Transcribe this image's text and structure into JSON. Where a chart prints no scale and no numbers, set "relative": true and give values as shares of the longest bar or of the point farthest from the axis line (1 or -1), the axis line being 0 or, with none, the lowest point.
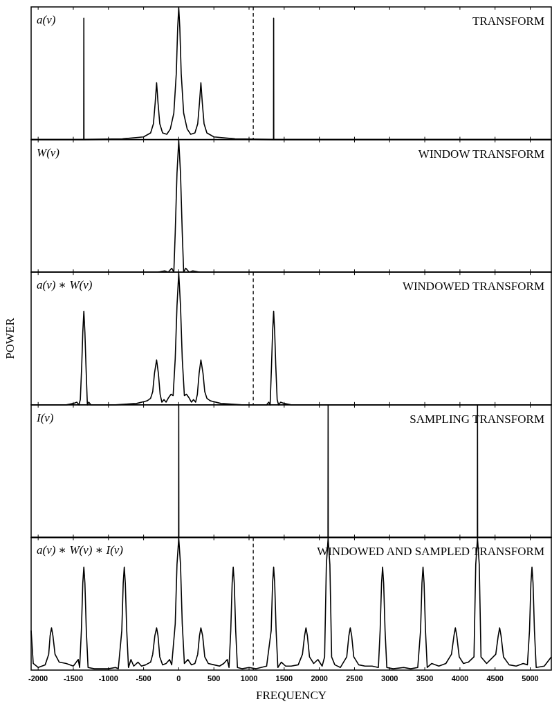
{
  "chart_data": [
    {
      "type": "line",
      "title": "TRANSFORM",
      "annotations": [
        "a(ν)"
      ],
      "relative": true,
      "xlim": [
        -2100,
        5300
      ],
      "xticks": [
        -2000,
        -1500,
        -1000,
        -500,
        0,
        500,
        1000,
        1500,
        2000,
        2500,
        3000,
        3500,
        4000,
        4500,
        5000
      ],
      "tick_labels": false,
      "ref_lines": [
        {
          "axis": "x",
          "value": 1060,
          "line_style": "dashed"
        }
      ],
      "series": [
        {
          "color": "#000000",
          "x": [
            -2100,
            -1352,
            -1350,
            -1348,
            -800,
            -500,
            -400,
            -360,
            -335,
            -315,
            -295,
            -270,
            -230,
            -170,
            -120,
            -70,
            -35,
            -15,
            0,
            15,
            35,
            70,
            120,
            170,
            230,
            270,
            295,
            315,
            335,
            360,
            400,
            500,
            800,
            1348,
            1350,
            1352,
            5300
          ],
          "values": [
            0,
            0,
            0.92,
            0,
            0.005,
            0.02,
            0.05,
            0.12,
            0.28,
            0.43,
            0.28,
            0.12,
            0.05,
            0.04,
            0.08,
            0.2,
            0.5,
            0.85,
            1,
            0.85,
            0.5,
            0.2,
            0.08,
            0.04,
            0.05,
            0.12,
            0.28,
            0.43,
            0.28,
            0.12,
            0.05,
            0.02,
            0.005,
            0,
            0.92,
            0,
            0
          ]
        }
      ]
    },
    {
      "type": "line",
      "title": "WINDOW TRANSFORM",
      "annotations": [
        "W(ν)"
      ],
      "relative": true,
      "xlim": [
        -2100,
        5300
      ],
      "xticks": [
        -2000,
        -1500,
        -1000,
        -500,
        0,
        500,
        1000,
        1500,
        2000,
        2500,
        3000,
        3500,
        4000,
        4500,
        5000
      ],
      "tick_labels": false,
      "series": [
        {
          "color": "#000000",
          "x": [
            -2100,
            -300,
            -200,
            -150,
            -100,
            -70,
            -50,
            -25,
            0,
            25,
            50,
            70,
            100,
            150,
            200,
            300,
            5300
          ],
          "values": [
            0,
            0,
            0.01,
            0,
            0.03,
            0,
            0.3,
            0.75,
            1,
            0.75,
            0.3,
            0,
            0.03,
            0,
            0.01,
            0,
            0
          ]
        }
      ]
    },
    {
      "type": "line",
      "title": "WINDOWED TRANSFORM",
      "annotations": [
        "a(ν) ∗ W(ν)"
      ],
      "ylabel": "POWER",
      "relative": true,
      "xlim": [
        -2100,
        5300
      ],
      "xticks": [
        -2000,
        -1500,
        -1000,
        -500,
        0,
        500,
        1000,
        1500,
        2000,
        2500,
        3000,
        3500,
        4000,
        4500,
        5000
      ],
      "tick_labels": false,
      "ref_lines": [
        {
          "axis": "x",
          "value": 1060,
          "line_style": "dashed"
        }
      ],
      "series": [
        {
          "color": "#000000",
          "x": [
            -2100,
            -1600,
            -1500,
            -1450,
            -1420,
            -1400,
            -1380,
            -1365,
            -1350,
            -1335,
            -1320,
            -1300,
            -1280,
            -1250,
            -900,
            -600,
            -450,
            -400,
            -370,
            -345,
            -315,
            -290,
            -265,
            -240,
            -210,
            -180,
            -150,
            -110,
            -80,
            -50,
            -25,
            0,
            25,
            50,
            80,
            110,
            150,
            180,
            210,
            240,
            265,
            290,
            315,
            345,
            370,
            400,
            450,
            600,
            900,
            1250,
            1280,
            1300,
            1320,
            1335,
            1350,
            1365,
            1380,
            1400,
            1420,
            1450,
            1500,
            1600,
            5300
          ],
          "values": [
            0,
            0,
            0.01,
            0.02,
            0,
            0.04,
            0.3,
            0.55,
            0.71,
            0.55,
            0.3,
            0,
            0.02,
            0,
            0,
            0.01,
            0.03,
            0.05,
            0.1,
            0.24,
            0.34,
            0.24,
            0.08,
            0.02,
            0.04,
            0.02,
            0.05,
            0.08,
            0.07,
            0.35,
            0.75,
            1,
            0.75,
            0.35,
            0.07,
            0.08,
            0.05,
            0.02,
            0.04,
            0.02,
            0.08,
            0.24,
            0.34,
            0.24,
            0.1,
            0.05,
            0.03,
            0.01,
            0,
            0,
            0.02,
            0,
            0.3,
            0.55,
            0.71,
            0.55,
            0.3,
            0.04,
            0,
            0.02,
            0.01,
            0,
            0
          ]
        }
      ]
    },
    {
      "type": "line",
      "title": "SAMPLING TRANSFORM",
      "annotations": [
        "I(ν)"
      ],
      "relative": true,
      "xlim": [
        -2100,
        5300
      ],
      "xticks": [
        -2000,
        -1500,
        -1000,
        -500,
        0,
        500,
        1000,
        1500,
        2000,
        2500,
        3000,
        3500,
        4000,
        4500,
        5000
      ],
      "tick_labels": false,
      "series": [
        {
          "color": "#000000",
          "x": [
            -2100,
            -2,
            0,
            2,
            2123,
            2125,
            2127,
            4248,
            4250,
            4252,
            5300
          ],
          "values": [
            0,
            0,
            1,
            0,
            0,
            1,
            0,
            0,
            1,
            0,
            0
          ]
        }
      ]
    },
    {
      "type": "line",
      "title": "WINDOWED AND SAMPLED TRANSFORM",
      "annotations": [
        "a(ν) ∗ W(ν) ∗ I(ν)"
      ],
      "xlabel": "FREQUENCY",
      "relative": true,
      "xlim": [
        -2100,
        5300
      ],
      "xticks": [
        -2000,
        -1500,
        -1000,
        -500,
        0,
        500,
        1000,
        1500,
        2000,
        2500,
        3000,
        3500,
        4000,
        4500,
        5000
      ],
      "tick_labels": "x",
      "ref_lines": [
        {
          "axis": "x",
          "value": 1060,
          "line_style": "dashed"
        }
      ],
      "series": [
        {
          "color": "#000000",
          "x": [
            -2100,
            -2070,
            -2000,
            -1900,
            -1850,
            -1830,
            -1810,
            -1790,
            -1760,
            -1700,
            -1600,
            -1500,
            -1430,
            -1410,
            -1385,
            -1365,
            -1350,
            -1335,
            -1315,
            -1290,
            -1200,
            -1000,
            -900,
            -860,
            -810,
            -790,
            -775,
            -760,
            -740,
            -715,
            -680,
            -640,
            -580,
            -530,
            -470,
            -400,
            -370,
            -340,
            -315,
            -295,
            -270,
            -230,
            -180,
            -130,
            -100,
            -50,
            -25,
            0,
            25,
            50,
            80,
            130,
            180,
            230,
            270,
            295,
            315,
            340,
            370,
            420,
            500,
            580,
            640,
            690,
            715,
            740,
            760,
            775,
            790,
            810,
            835,
            900,
            1000,
            1100,
            1250,
            1315,
            1335,
            1350,
            1365,
            1385,
            1410,
            1460,
            1520,
            1600,
            1700,
            1760,
            1790,
            1810,
            1830,
            1860,
            1920,
            1980,
            2040,
            2075,
            2100,
            2125,
            2150,
            2175,
            2220,
            2300,
            2390,
            2420,
            2440,
            2460,
            2490,
            2560,
            2650,
            2750,
            2840,
            2865,
            2885,
            2900,
            2915,
            2935,
            2960,
            3050,
            3200,
            3300,
            3400,
            3440,
            3460,
            3475,
            3490,
            3510,
            3535,
            3600,
            3700,
            3800,
            3880,
            3915,
            3935,
            3955,
            3990,
            4050,
            4120,
            4200,
            4225,
            4250,
            4275,
            4300,
            4380,
            4510,
            4545,
            4565,
            4585,
            4620,
            4700,
            4800,
            4900,
            4960,
            4990,
            5010,
            5025,
            5040,
            5060,
            5085,
            5200,
            5300
          ],
          "values": [
            0.3,
            0.05,
            0.02,
            0.04,
            0.12,
            0.26,
            0.32,
            0.26,
            0.12,
            0.06,
            0.05,
            0.03,
            0.08,
            0.02,
            0.3,
            0.66,
            0.78,
            0.66,
            0.3,
            0.02,
            0.01,
            0.01,
            0.02,
            0.01,
            0.3,
            0.66,
            0.78,
            0.66,
            0.3,
            0.02,
            0.08,
            0.03,
            0.06,
            0.03,
            0.04,
            0.06,
            0.12,
            0.26,
            0.32,
            0.26,
            0.1,
            0.04,
            0.05,
            0.08,
            0.04,
            0.35,
            0.8,
            1,
            0.8,
            0.35,
            0.05,
            0.08,
            0.04,
            0.05,
            0.12,
            0.26,
            0.32,
            0.26,
            0.1,
            0.05,
            0.04,
            0.03,
            0.05,
            0.08,
            0.02,
            0.3,
            0.66,
            0.78,
            0.66,
            0.3,
            0.02,
            0.01,
            0.02,
            0.01,
            0.03,
            0.3,
            0.66,
            0.78,
            0.66,
            0.3,
            0.02,
            0.06,
            0.03,
            0.03,
            0.04,
            0.12,
            0.26,
            0.32,
            0.26,
            0.1,
            0.05,
            0.08,
            0.03,
            0.1,
            0.8,
            1,
            0.8,
            0.1,
            0.04,
            0.02,
            0.1,
            0.26,
            0.32,
            0.26,
            0.1,
            0.04,
            0.03,
            0.03,
            0.02,
            0.3,
            0.66,
            0.78,
            0.66,
            0.3,
            0.02,
            0.01,
            0.02,
            0.01,
            0.02,
            0.3,
            0.66,
            0.78,
            0.66,
            0.3,
            0.02,
            0.05,
            0.03,
            0.05,
            0.12,
            0.26,
            0.32,
            0.26,
            0.1,
            0.05,
            0.06,
            0.1,
            0.8,
            1,
            0.8,
            0.1,
            0.05,
            0.12,
            0.26,
            0.32,
            0.26,
            0.1,
            0.04,
            0.03,
            0.05,
            0.04,
            0.3,
            0.66,
            0.78,
            0.66,
            0.3,
            0.02,
            0.03,
            0.1
          ]
        }
      ]
    }
  ]
}
